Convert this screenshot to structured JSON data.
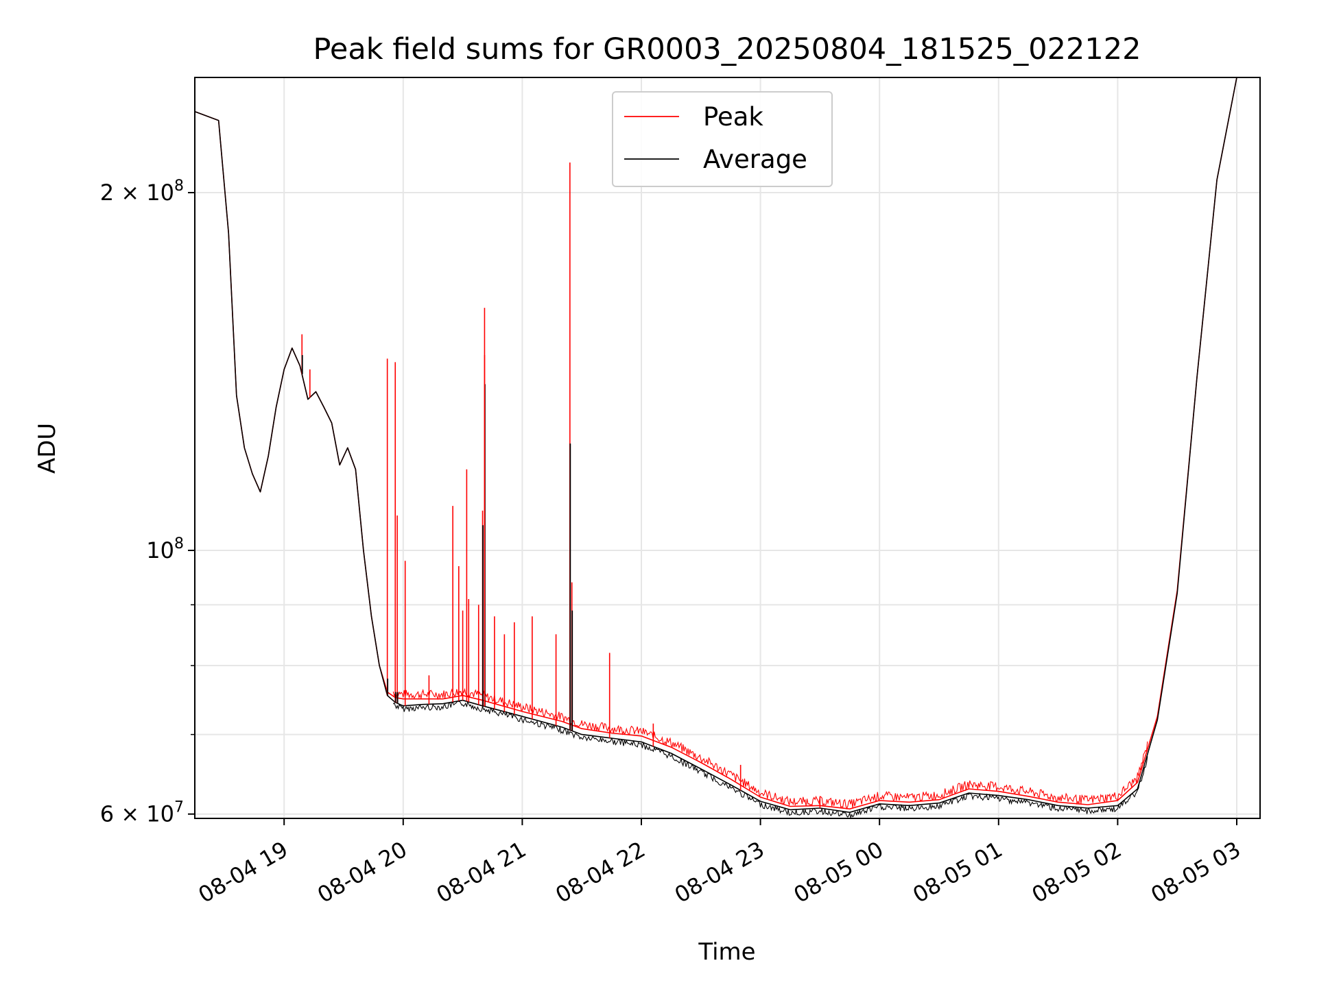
{
  "chart_data": {
    "type": "line",
    "title": "Peak field sums for GR0003_20250804_181525_022122",
    "xlabel": "Time",
    "ylabel": "ADU",
    "yscale": "log",
    "ylim": [
      59500000,
      250000000
    ],
    "xlim": [
      "08-04 18:15",
      "08-05 03:00"
    ],
    "grid": true,
    "legend_position": "top-center",
    "x_ticks": [
      "08-04 19",
      "08-04 20",
      "08-04 21",
      "08-04 22",
      "08-04 23",
      "08-05 00",
      "08-05 01",
      "08-05 02",
      "08-05 03"
    ],
    "y_ticks": [
      {
        "value": 60000000,
        "base": "6",
        "exp": "7",
        "mant": true
      },
      {
        "value": 100000000,
        "base": "10",
        "exp": "8",
        "mant": false
      },
      {
        "value": 200000000,
        "base": "2",
        "exp": "8",
        "mant": true
      }
    ],
    "y_minor_ticks": [
      70000000,
      80000000,
      90000000
    ],
    "colors": {
      "Peak": "#ff0000",
      "Average": "#000000"
    },
    "series": [
      {
        "name": "Average",
        "x": [
          "08-04 18:15",
          "08-04 18:27",
          "08-04 18:32",
          "08-04 18:36",
          "08-04 18:40",
          "08-04 18:44",
          "08-04 18:48",
          "08-04 18:52",
          "08-04 18:56",
          "08-04 19:00",
          "08-04 19:04",
          "08-04 19:08",
          "08-04 19:12",
          "08-04 19:16",
          "08-04 19:20",
          "08-04 19:24",
          "08-04 19:28",
          "08-04 19:32",
          "08-04 19:36",
          "08-04 19:40",
          "08-04 19:44",
          "08-04 19:48",
          "08-04 19:52",
          "08-04 19:56",
          "08-04 20:00",
          "08-04 20:10",
          "08-04 20:20",
          "08-04 20:30",
          "08-04 20:40",
          "08-04 21:00",
          "08-04 21:20",
          "08-04 21:30",
          "08-04 21:45",
          "08-04 22:00",
          "08-04 22:15",
          "08-04 22:30",
          "08-04 22:45",
          "08-04 23:00",
          "08-04 23:15",
          "08-04 23:30",
          "08-04 23:45",
          "08-05 00:00",
          "08-05 00:15",
          "08-05 00:30",
          "08-05 00:45",
          "08-05 01:00",
          "08-05 01:15",
          "08-05 01:30",
          "08-05 01:45",
          "08-05 02:00",
          "08-05 02:10",
          "08-05 02:20",
          "08-05 02:30",
          "08-05 02:40",
          "08-05 02:50",
          "08-05 03:00"
        ],
        "y": [
          234000000,
          230000000,
          185000000,
          135000000,
          122000000,
          116000000,
          112000000,
          120000000,
          132000000,
          142000000,
          148000000,
          143000000,
          134000000,
          136000000,
          132000000,
          128000000,
          118000000,
          122000000,
          117000000,
          100000000,
          88000000,
          80000000,
          75500000,
          74500000,
          74000000,
          74200000,
          74300000,
          74800000,
          74000000,
          72500000,
          71000000,
          70000000,
          69500000,
          69000000,
          67500000,
          65500000,
          63500000,
          61500000,
          60500000,
          60700000,
          60200000,
          61200000,
          61000000,
          61300000,
          62500000,
          62200000,
          61700000,
          61000000,
          60700000,
          61000000,
          63000000,
          72000000,
          92000000,
          140000000,
          205000000,
          250000000
        ]
      },
      {
        "name": "Peak",
        "x": [
          "08-04 18:15",
          "08-04 18:27",
          "08-04 18:32",
          "08-04 18:36",
          "08-04 18:40",
          "08-04 18:44",
          "08-04 18:48",
          "08-04 18:52",
          "08-04 18:56",
          "08-04 19:00",
          "08-04 19:04",
          "08-04 19:08",
          "08-04 19:12",
          "08-04 19:16",
          "08-04 19:20",
          "08-04 19:24",
          "08-04 19:28",
          "08-04 19:32",
          "08-04 19:36",
          "08-04 19:40",
          "08-04 19:44",
          "08-04 19:48",
          "08-04 19:52",
          "08-04 19:56",
          "08-04 20:00",
          "08-04 20:10",
          "08-04 20:20",
          "08-04 20:30",
          "08-04 20:40",
          "08-04 21:00",
          "08-04 21:20",
          "08-04 21:30",
          "08-04 21:45",
          "08-04 22:00",
          "08-04 22:15",
          "08-04 22:30",
          "08-04 22:45",
          "08-04 23:00",
          "08-04 23:15",
          "08-04 23:30",
          "08-04 23:45",
          "08-05 00:00",
          "08-05 00:15",
          "08-05 00:30",
          "08-05 00:45",
          "08-05 01:00",
          "08-05 01:15",
          "08-05 01:30",
          "08-05 01:45",
          "08-05 02:00",
          "08-05 02:10",
          "08-05 02:20",
          "08-05 02:30",
          "08-05 02:40",
          "08-05 02:50",
          "08-05 03:00"
        ],
        "y": [
          234000000,
          230000000,
          185000000,
          135000000,
          122000000,
          116000000,
          112000000,
          120000000,
          132000000,
          142000000,
          148000000,
          143000000,
          134000000,
          136000000,
          132000000,
          128000000,
          118000000,
          122000000,
          117000000,
          100000000,
          88000000,
          80000000,
          76000000,
          75200000,
          75000000,
          75000000,
          75000000,
          75500000,
          74800000,
          73200000,
          71800000,
          70800000,
          70200000,
          69800000,
          68300000,
          66300000,
          64200000,
          62000000,
          60900000,
          61000000,
          60600000,
          61600000,
          61400000,
          61700000,
          63000000,
          62700000,
          62100000,
          61400000,
          61100000,
          61600000,
          63800000,
          72500000,
          92500000,
          140000000,
          205000000,
          250000000
        ]
      }
    ],
    "spikes": [
      {
        "x": "08-04 19:09",
        "peak": 152000000,
        "average": 146000000
      },
      {
        "x": "08-04 19:13",
        "peak": 142000000,
        "average": 137000000
      },
      {
        "x": "08-04 19:18",
        "peak": 134000000,
        "average": 129000000
      },
      {
        "x": "08-04 19:52",
        "peak": 145000000,
        "average": 78000000
      },
      {
        "x": "08-04 19:56",
        "peak": 144000000,
        "average": 76000000
      },
      {
        "x": "08-04 19:57",
        "peak": 107000000,
        "average": 76000000
      },
      {
        "x": "08-04 20:01",
        "peak": 98000000,
        "average": 75000000
      },
      {
        "x": "08-04 20:13",
        "peak": 78500000,
        "average": 74500000
      },
      {
        "x": "08-04 20:25",
        "peak": 109000000,
        "average": 74500000
      },
      {
        "x": "08-04 20:28",
        "peak": 97000000,
        "average": 74800000
      },
      {
        "x": "08-04 20:30",
        "peak": 89000000,
        "average": 74800000
      },
      {
        "x": "08-04 20:32",
        "peak": 117000000,
        "average": 75000000
      },
      {
        "x": "08-04 20:33",
        "peak": 91000000,
        "average": 75000000
      },
      {
        "x": "08-04 20:38",
        "peak": 90000000,
        "average": 75000000
      },
      {
        "x": "08-04 20:40",
        "peak": 108000000,
        "average": 105000000
      },
      {
        "x": "08-04 20:41",
        "peak": 146000000,
        "average": 138000000
      },
      {
        "x": "08-04 20:41",
        "peak": 160000000,
        "average": 74500000
      },
      {
        "x": "08-04 20:46",
        "peak": 88000000,
        "average": 74300000
      },
      {
        "x": "08-04 20:51",
        "peak": 85000000,
        "average": 74000000
      },
      {
        "x": "08-04 20:56",
        "peak": 87000000,
        "average": 73800000
      },
      {
        "x": "08-04 21:05",
        "peak": 88000000,
        "average": 73000000
      },
      {
        "x": "08-04 21:17",
        "peak": 85000000,
        "average": 72000000
      },
      {
        "x": "08-04 21:24",
        "peak": 212000000,
        "average": 123000000
      },
      {
        "x": "08-04 21:25",
        "peak": 94000000,
        "average": 89000000
      },
      {
        "x": "08-04 21:44",
        "peak": 82000000,
        "average": 70000000
      },
      {
        "x": "08-04 22:06",
        "peak": 71500000,
        "average": 69500000
      },
      {
        "x": "08-04 22:50",
        "peak": 66000000,
        "average": 64000000
      },
      {
        "x": "08-04 23:30",
        "peak": 62000000,
        "average": 60500000
      }
    ]
  }
}
